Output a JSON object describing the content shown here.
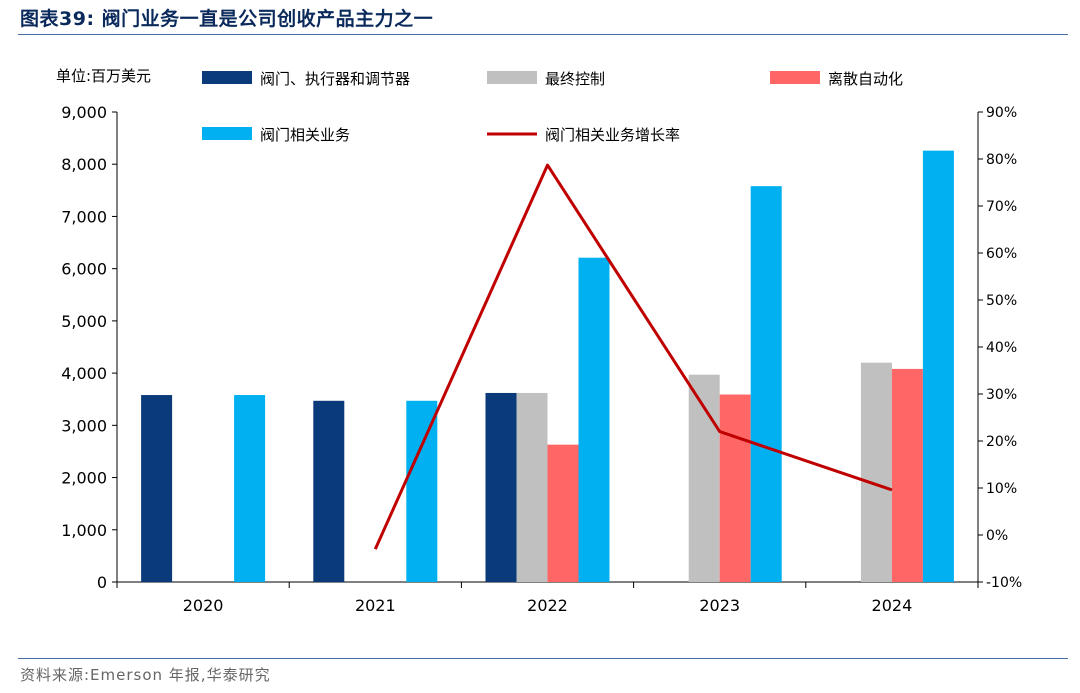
{
  "title": "图表39:  阀门业务一直是公司创收产品主力之一",
  "source": "资料来源:Emerson 年报,华泰研究",
  "chart_data": {
    "type": "bar",
    "unit_label": "单位:百万美元",
    "categories": [
      "2020",
      "2021",
      "2022",
      "2023",
      "2024"
    ],
    "series": [
      {
        "name": "阀门、执行器和调节器",
        "color": "#0a3a7a",
        "values": [
          3580,
          3470,
          3620,
          null,
          null
        ]
      },
      {
        "name": "最终控制",
        "color": "#c0c0c0",
        "values": [
          null,
          null,
          3620,
          3970,
          4200
        ]
      },
      {
        "name": "离散自动化",
        "color": "#ff6666",
        "values": [
          null,
          null,
          2630,
          3590,
          4080
        ]
      },
      {
        "name": "阀门相关业务",
        "color": "#00b0f0",
        "values": [
          3580,
          3470,
          6210,
          7580,
          8260
        ]
      }
    ],
    "line_series": {
      "name": "阀门相关业务增长率",
      "color": "#c00000",
      "values": [
        null,
        -0.03,
        0.787,
        0.22,
        0.096
      ]
    },
    "ylim": [
      0,
      9000
    ],
    "yticks": [
      "0",
      "1,000",
      "2,000",
      "3,000",
      "4,000",
      "5,000",
      "6,000",
      "7,000",
      "8,000",
      "9,000"
    ],
    "y2lim": [
      -0.1,
      0.9
    ],
    "y2ticks": [
      "-10%",
      "0%",
      "10%",
      "20%",
      "30%",
      "40%",
      "50%",
      "60%",
      "70%",
      "80%",
      "90%"
    ],
    "legend_position": "top"
  }
}
